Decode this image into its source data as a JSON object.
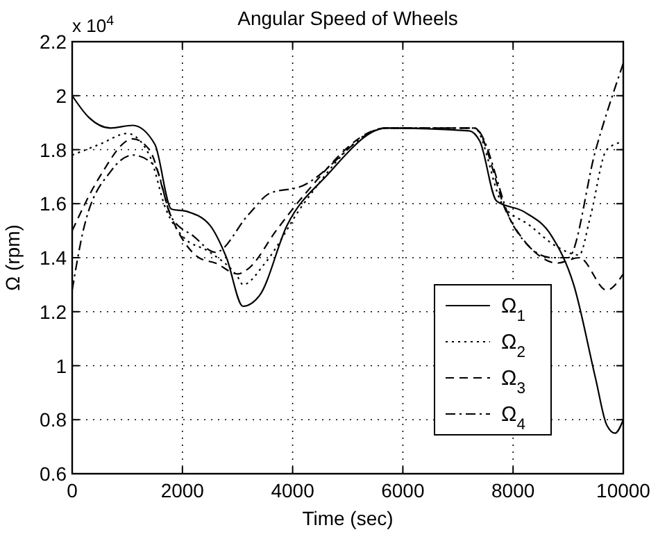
{
  "chart_data": {
    "type": "line",
    "title": "Angular Speed of Wheels",
    "xlabel": "Time (sec)",
    "ylabel": "Ω (rpm)",
    "annotations": [
      "x 10$^{4}$"
    ],
    "xlim": [
      0,
      10000
    ],
    "xticks": [
      0,
      2000,
      4000,
      6000,
      8000,
      10000
    ],
    "ylim": [
      0.6,
      2.2
    ],
    "yticks": [
      0.6,
      0.8,
      1,
      1.2,
      1.4,
      1.6,
      1.8,
      2,
      2.2
    ],
    "grid": true,
    "legend": "bottom right",
    "series": [
      {
        "name": "Ω$_{1}$",
        "color": "#000000",
        "line_style": "solid",
        "x": [
          0,
          300,
          700,
          1100,
          1500,
          1800,
          2100,
          2500,
          2800,
          3100,
          3400,
          3900,
          4600,
          5700,
          7200,
          7400,
          7700,
          8200,
          8700,
          9100,
          9500,
          9700,
          9850,
          10000
        ],
        "values": [
          2.0,
          1.92,
          1.88,
          1.89,
          1.82,
          1.58,
          1.57,
          1.52,
          1.4,
          1.22,
          1.26,
          1.52,
          1.7,
          1.88,
          1.87,
          1.83,
          1.61,
          1.57,
          1.48,
          1.3,
          0.95,
          0.78,
          0.75,
          0.8
        ]
      },
      {
        "name": "Ω$_{2}$",
        "color": "#000000",
        "line_style": "dotted",
        "x": [
          0,
          500,
          1000,
          1400,
          1700,
          2000,
          2500,
          3000,
          3100,
          3500,
          4200,
          5700,
          7300,
          7800,
          8300,
          8800,
          9200,
          9400,
          9700,
          10000
        ],
        "values": [
          1.78,
          1.82,
          1.86,
          1.78,
          1.58,
          1.48,
          1.42,
          1.33,
          1.3,
          1.38,
          1.6,
          1.88,
          1.88,
          1.6,
          1.52,
          1.44,
          1.41,
          1.55,
          1.8,
          1.83
        ]
      },
      {
        "name": "Ω$_{3}$",
        "color": "#000000",
        "line_style": "dashed",
        "x": [
          0,
          500,
          1100,
          1400,
          1800,
          2300,
          2600,
          3000,
          3200,
          3700,
          4200,
          5700,
          7300,
          7900,
          8400,
          8800,
          9200,
          9700,
          10000
        ],
        "values": [
          1.5,
          1.7,
          1.84,
          1.8,
          1.55,
          1.4,
          1.38,
          1.34,
          1.36,
          1.5,
          1.63,
          1.88,
          1.88,
          1.56,
          1.42,
          1.38,
          1.4,
          1.28,
          1.34
        ]
      },
      {
        "name": "Ω$_{4}$",
        "color": "#000000",
        "line_style": "dashdot",
        "x": [
          0,
          200,
          700,
          1100,
          1500,
          1800,
          2200,
          2600,
          3200,
          3600,
          4100,
          5700,
          7300,
          8000,
          8700,
          9000,
          9500,
          10000
        ],
        "values": [
          1.28,
          1.5,
          1.72,
          1.78,
          1.74,
          1.55,
          1.48,
          1.42,
          1.56,
          1.64,
          1.66,
          1.88,
          1.88,
          1.52,
          1.4,
          1.4,
          1.8,
          2.12
        ]
      }
    ]
  }
}
